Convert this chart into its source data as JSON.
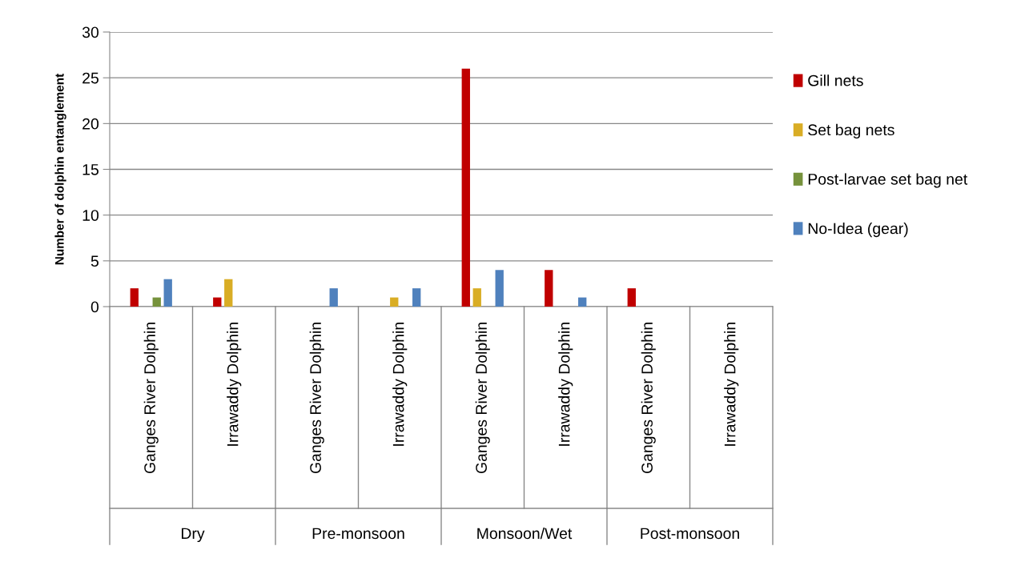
{
  "chart_data": {
    "type": "bar",
    "ylabel": "Number of dolphin entanglement",
    "categories": [
      "Ganges River Dolphin",
      "Irrawaddy Dolphin",
      "Ganges River Dolphin",
      "Irrawaddy Dolphin",
      "Ganges River Dolphin",
      "Irrawaddy Dolphin",
      "Ganges River Dolphin",
      "Irrawaddy Dolphin"
    ],
    "annotations": [
      "Dry",
      "Pre-monsoon",
      "Monsoon/Wet",
      "Post-monsoon"
    ],
    "series": [
      {
        "name": "Gill nets",
        "color": "#c00000",
        "values": [
          2,
          1,
          0,
          0,
          26,
          4,
          2,
          0
        ]
      },
      {
        "name": "Set bag nets",
        "color": "#d9ad25",
        "values": [
          0,
          3,
          0,
          1,
          2,
          0,
          0,
          0
        ]
      },
      {
        "name": "Post-larvae set bag net",
        "color": "#76923c",
        "values": [
          1,
          0,
          0,
          0,
          0,
          0,
          0,
          0
        ]
      },
      {
        "name": "No-Idea (gear)",
        "color": "#4f81bd",
        "values": [
          3,
          0,
          2,
          2,
          4,
          1,
          0,
          0
        ]
      }
    ],
    "ylim": [
      0,
      30
    ],
    "yticks": [
      0,
      5,
      10,
      15,
      20,
      25,
      30
    ],
    "grid": "y",
    "legend": "right"
  }
}
